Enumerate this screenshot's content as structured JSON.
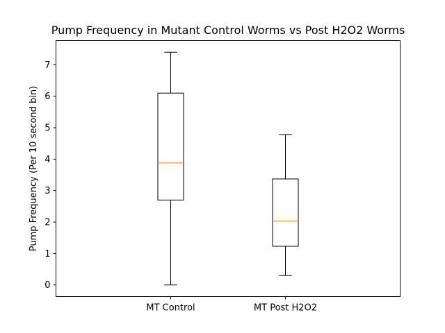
{
  "chart_data": {
    "type": "box",
    "title": "Pump Frequency in Mutant Control Worms vs Post H2O2 Worms",
    "xlabel": "",
    "ylabel": "Pump Frequency (Per 10 second bin)",
    "categories": [
      "MT Control",
      "MT Post H2O2"
    ],
    "boxes": [
      {
        "category": "MT Control",
        "whisker_low": 0.0,
        "q1": 2.7,
        "median": 3.88,
        "q3": 6.1,
        "whisker_high": 7.4
      },
      {
        "category": "MT Post H2O2",
        "whisker_low": 0.3,
        "q1": 1.23,
        "median": 2.03,
        "q3": 3.37,
        "whisker_high": 4.78
      }
    ],
    "ylim": [
      -0.37,
      7.77
    ],
    "yticks": [
      0,
      1,
      2,
      3,
      4,
      5,
      6,
      7
    ],
    "grid": false,
    "legend": "none",
    "colors": {
      "box": "#000000",
      "median": "#ff7f0e",
      "background": "#ffffff"
    }
  }
}
